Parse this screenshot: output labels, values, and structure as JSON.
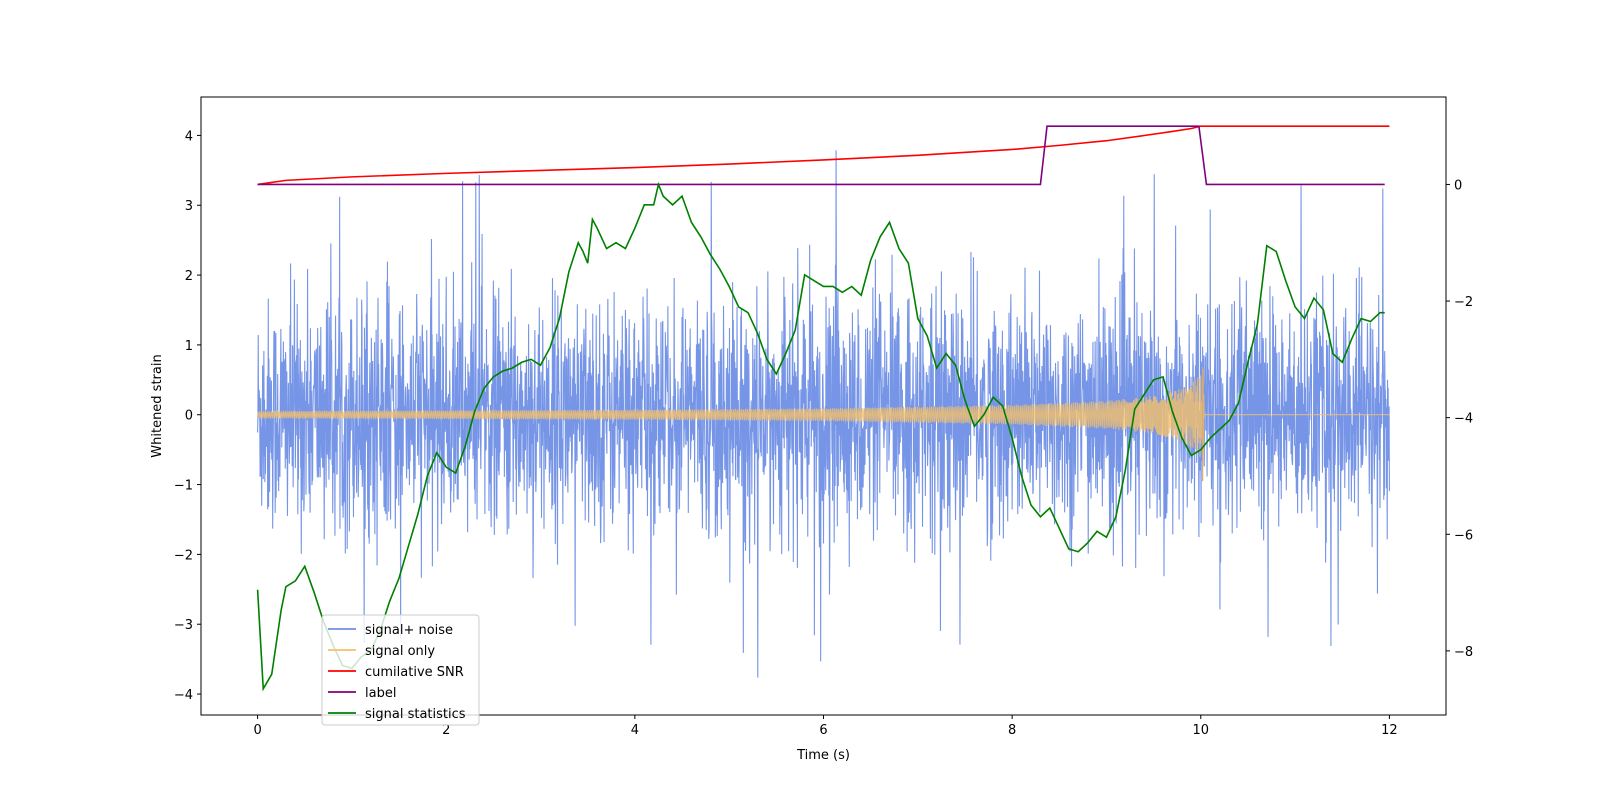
{
  "chart_data": {
    "type": "line",
    "title": "",
    "xlabel": "Time (s)",
    "ylabel": "Whitened strain",
    "y2label": "",
    "xlim": [
      -0.6,
      12.6
    ],
    "ylim": [
      -4.3,
      4.55
    ],
    "y2lim": [
      -9.1,
      1.5
    ],
    "xticks": [
      0,
      2,
      4,
      6,
      8,
      10,
      12
    ],
    "yticks": [
      -4,
      -3,
      -2,
      -1,
      0,
      1,
      2,
      3,
      4
    ],
    "y2ticks": [
      -8,
      -6,
      -4,
      -2,
      0
    ],
    "legend_position": "lower-left",
    "series": [
      {
        "name": "signal+ noise",
        "axis": "left",
        "color": "#6f8fe6",
        "description": "whitened noise around zero, amplitude roughly +/-2.7 with spikes to +/-4",
        "x_range": [
          0,
          12
        ],
        "amplitude": 0.82,
        "spike_max": [
          4.18,
          -3.9
        ]
      },
      {
        "name": "signal only",
        "axis": "left",
        "color": "#f5c16a",
        "x_range": [
          0,
          12
        ],
        "envelope": {
          "x": [
            0,
            2,
            4,
            6,
            8,
            9,
            9.5,
            9.8,
            9.95,
            10.03,
            10.04,
            12
          ],
          "y": [
            0.05,
            0.06,
            0.07,
            0.09,
            0.14,
            0.2,
            0.27,
            0.38,
            0.52,
            0.68,
            0.0,
            0.0
          ]
        }
      },
      {
        "name": "cumilative SNR",
        "axis": "right",
        "color": "#ff0000",
        "x": [
          0,
          0.3,
          1,
          2,
          3,
          4,
          5,
          6,
          7,
          8,
          8.5,
          9,
          9.4,
          9.7,
          9.9,
          10,
          10.05,
          12
        ],
        "y": [
          0,
          0.07,
          0.13,
          0.19,
          0.24,
          0.29,
          0.35,
          0.42,
          0.5,
          0.6,
          0.67,
          0.75,
          0.84,
          0.91,
          0.96,
          1.0,
          1.0,
          1.0
        ]
      },
      {
        "name": "label",
        "axis": "right",
        "color": "#800080",
        "x": [
          0,
          8.3,
          8.37,
          9.98,
          10.06,
          11.95
        ],
        "y": [
          0,
          0,
          1,
          1,
          0,
          0
        ]
      },
      {
        "name": "signal statistics",
        "axis": "right",
        "color": "#008000",
        "x": [
          0,
          0.06,
          0.15,
          0.25,
          0.3,
          0.4,
          0.5,
          0.6,
          0.7,
          0.8,
          0.9,
          1.0,
          1.1,
          1.2,
          1.3,
          1.4,
          1.5,
          1.6,
          1.7,
          1.8,
          1.9,
          2.0,
          2.1,
          2.2,
          2.3,
          2.4,
          2.5,
          2.6,
          2.7,
          2.8,
          2.9,
          3.0,
          3.1,
          3.2,
          3.3,
          3.4,
          3.45,
          3.5,
          3.55,
          3.6,
          3.7,
          3.8,
          3.9,
          4.0,
          4.1,
          4.2,
          4.25,
          4.3,
          4.4,
          4.5,
          4.6,
          4.7,
          4.8,
          4.9,
          5.0,
          5.1,
          5.2,
          5.3,
          5.4,
          5.5,
          5.6,
          5.7,
          5.8,
          5.9,
          6.0,
          6.1,
          6.2,
          6.3,
          6.4,
          6.5,
          6.6,
          6.7,
          6.8,
          6.9,
          7.0,
          7.1,
          7.2,
          7.3,
          7.4,
          7.5,
          7.6,
          7.7,
          7.8,
          7.9,
          8.0,
          8.1,
          8.2,
          8.3,
          8.4,
          8.5,
          8.6,
          8.7,
          8.8,
          8.9,
          9.0,
          9.1,
          9.2,
          9.3,
          9.4,
          9.5,
          9.6,
          9.7,
          9.8,
          9.9,
          10.0,
          10.1,
          10.2,
          10.3,
          10.4,
          10.5,
          10.6,
          10.7,
          10.8,
          10.9,
          11.0,
          11.1,
          11.2,
          11.3,
          11.4,
          11.5,
          11.6,
          11.7,
          11.8,
          11.9,
          11.95
        ],
        "y": [
          -6.95,
          -8.65,
          -8.4,
          -7.3,
          -6.9,
          -6.8,
          -6.55,
          -7.0,
          -7.5,
          -7.9,
          -8.25,
          -8.3,
          -8.1,
          -8.0,
          -7.65,
          -7.15,
          -6.75,
          -6.2,
          -5.65,
          -5.0,
          -4.6,
          -4.85,
          -4.95,
          -4.5,
          -3.9,
          -3.5,
          -3.3,
          -3.2,
          -3.15,
          -3.05,
          -3.0,
          -3.1,
          -2.8,
          -2.3,
          -1.5,
          -1.0,
          -1.15,
          -1.35,
          -0.6,
          -0.75,
          -1.1,
          -1.0,
          -1.1,
          -0.75,
          -0.35,
          -0.35,
          0.0,
          -0.2,
          -0.35,
          -0.2,
          -0.65,
          -0.9,
          -1.2,
          -1.45,
          -1.75,
          -2.1,
          -2.2,
          -2.55,
          -3.0,
          -3.25,
          -2.9,
          -2.5,
          -1.55,
          -1.65,
          -1.75,
          -1.75,
          -1.85,
          -1.75,
          -1.9,
          -1.3,
          -0.9,
          -0.65,
          -1.1,
          -1.35,
          -2.3,
          -2.6,
          -3.15,
          -2.9,
          -3.1,
          -3.7,
          -4.15,
          -3.95,
          -3.65,
          -3.8,
          -4.35,
          -5.0,
          -5.5,
          -5.7,
          -5.55,
          -5.9,
          -6.25,
          -6.3,
          -6.15,
          -5.95,
          -6.05,
          -5.7,
          -4.9,
          -3.85,
          -3.6,
          -3.35,
          -3.3,
          -3.9,
          -4.35,
          -4.65,
          -4.55,
          -4.35,
          -4.2,
          -4.05,
          -3.75,
          -3.05,
          -2.4,
          -1.05,
          -1.15,
          -1.65,
          -2.1,
          -2.3,
          -1.95,
          -2.15,
          -2.9,
          -3.05,
          -2.65,
          -2.3,
          -2.35,
          -2.2,
          -2.2
        ]
      }
    ]
  }
}
